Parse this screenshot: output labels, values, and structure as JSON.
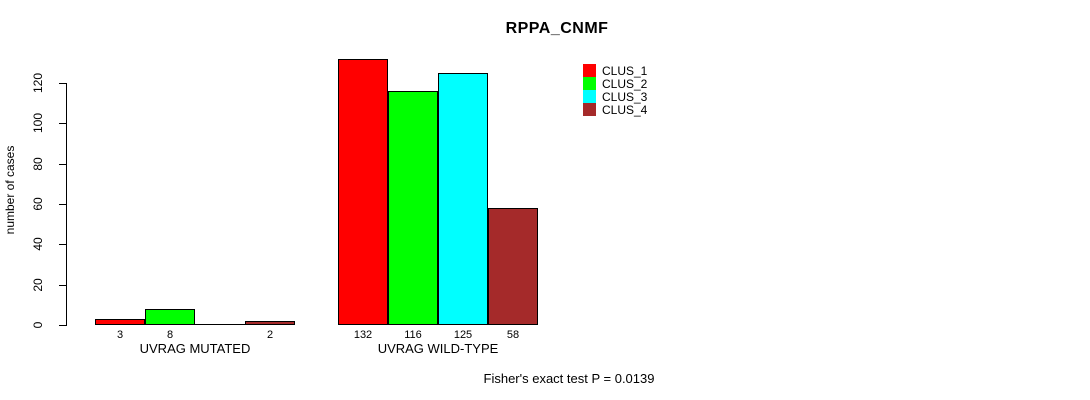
{
  "chart_data": {
    "type": "bar",
    "title": "RPPA_CNMF",
    "ylabel": "number of cases",
    "xlabel": "",
    "ylim": [
      0,
      132
    ],
    "yticks": [
      0,
      20,
      40,
      60,
      80,
      100,
      120
    ],
    "grid": false,
    "background": "#FFFFFF",
    "axis_color": "#000000",
    "series": [
      {
        "name": "CLUS_1",
        "color": "#FF0000"
      },
      {
        "name": "CLUS_2",
        "color": "#00FF00"
      },
      {
        "name": "CLUS_3",
        "color": "#00FFFF"
      },
      {
        "name": "CLUS_4",
        "color": "#A52A2A"
      }
    ],
    "categories": [
      "UVRAG MUTATED",
      "UVRAG WILD-TYPE"
    ],
    "groups": [
      {
        "label": "UVRAG MUTATED",
        "values": [
          3,
          8,
          0,
          2
        ],
        "bar_labels": [
          "3",
          "8",
          "",
          "2"
        ]
      },
      {
        "label": "UVRAG WILD-TYPE",
        "values": [
          132,
          116,
          125,
          58
        ],
        "bar_labels": [
          "132",
          "116",
          "125",
          "58"
        ]
      }
    ],
    "legend": {
      "position": "top-right",
      "entries": [
        "CLUS_1",
        "CLUS_2",
        "CLUS_3",
        "CLUS_4"
      ]
    },
    "footnote": "Fisher's exact test P = 0.0139"
  }
}
